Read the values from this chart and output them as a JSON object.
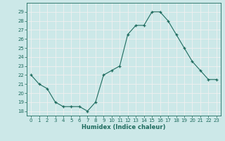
{
  "x": [
    0,
    1,
    2,
    3,
    4,
    5,
    6,
    7,
    8,
    9,
    10,
    11,
    12,
    13,
    14,
    15,
    16,
    17,
    18,
    19,
    20,
    21,
    22,
    23
  ],
  "y": [
    22,
    21,
    20.5,
    19,
    18.5,
    18.5,
    18.5,
    18,
    19,
    22,
    22.5,
    23,
    26.5,
    27.5,
    27.5,
    29,
    29,
    28,
    26.5,
    25,
    23.5,
    22.5,
    21.5,
    21.5
  ],
  "xlabel": "Humidex (Indice chaleur)",
  "ylim": [
    17.5,
    30
  ],
  "xlim": [
    -0.5,
    23.5
  ],
  "yticks": [
    18,
    19,
    20,
    21,
    22,
    23,
    24,
    25,
    26,
    27,
    28,
    29
  ],
  "xticks": [
    0,
    1,
    2,
    3,
    4,
    5,
    6,
    7,
    8,
    9,
    10,
    11,
    12,
    13,
    14,
    15,
    16,
    17,
    18,
    19,
    20,
    21,
    22,
    23
  ],
  "line_color": "#1e6b5e",
  "bg_color": "#cce8e8",
  "grid_color": "#f0f0f0",
  "tick_color": "#1e6b5e",
  "label_color": "#1e6b5e",
  "marker": "+"
}
